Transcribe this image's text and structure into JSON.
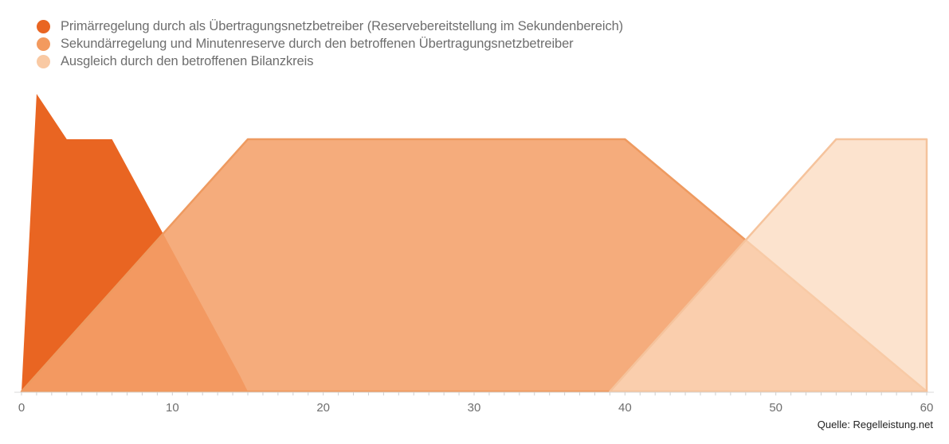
{
  "legend": [
    {
      "label": "Primärregelung durch als Übertragungsnetzbetreiber (Reservebereitstellung im Sekundenbereich)",
      "color": "#e96522"
    },
    {
      "label": "Sekundärregelung und Minutenreserve durch den betroffenen Übertragungsnetzbetreiber",
      "color": "#f4a06a"
    },
    {
      "label": "Ausgleich durch den betroffenen Bilanzkreis",
      "color": "#f9c9a3"
    }
  ],
  "source": "Quelle: Regelleistung.net",
  "chart_data": {
    "type": "area",
    "title": "",
    "xlabel": "",
    "ylabel": "",
    "x_ticks": [
      0,
      10,
      20,
      30,
      40,
      50,
      60
    ],
    "xlim": [
      0,
      60
    ],
    "ylim": [
      0,
      120
    ],
    "grid": false,
    "legend_position": "top-left",
    "series": [
      {
        "name": "Primärregelung durch als Übertragungsnetzbetreiber (Reservebereitstellung im Sekundenbereich)",
        "color": "#e96522",
        "points": [
          [
            0,
            0
          ],
          [
            1,
            118
          ],
          [
            3,
            100
          ],
          [
            6,
            100
          ],
          [
            14.5,
            6
          ],
          [
            15,
            0
          ]
        ]
      },
      {
        "name": "Sekundärregelung und Minutenreserve durch den betroffenen Übertragungsnetzbetreiber",
        "color": "#f4a06a",
        "points": [
          [
            0,
            0
          ],
          [
            15,
            100
          ],
          [
            40,
            100
          ],
          [
            60,
            0
          ]
        ]
      },
      {
        "name": "Ausgleich durch den betroffenen Bilanzkreis",
        "color": "#fbd2b0",
        "points": [
          [
            39,
            0
          ],
          [
            54,
            100
          ],
          [
            60,
            100
          ],
          [
            60,
            0
          ]
        ]
      }
    ]
  }
}
